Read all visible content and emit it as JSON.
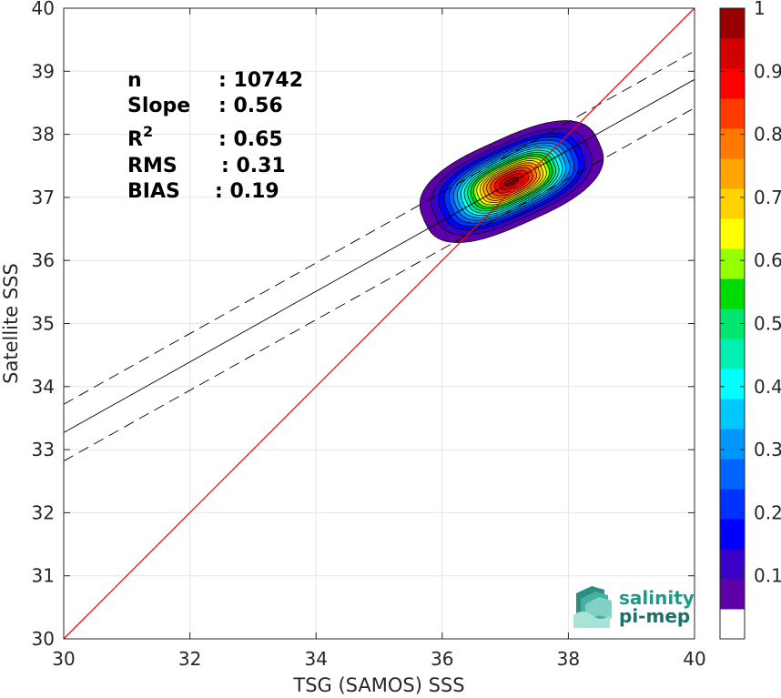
{
  "chart_data": {
    "type": "heatmap",
    "title": "",
    "xlabel": "TSG (SAMOS) SSS",
    "ylabel": "Satellite SSS",
    "xlim": [
      30,
      40
    ],
    "ylim": [
      30,
      40
    ],
    "xticks": [
      "30",
      "32",
      "34",
      "36",
      "38",
      "40"
    ],
    "yticks": [
      "30",
      "31",
      "32",
      "33",
      "34",
      "35",
      "36",
      "37",
      "38",
      "39",
      "40"
    ],
    "grid": true,
    "stats": [
      {
        "label": "n",
        "sep": ":",
        "value": "10742"
      },
      {
        "label": "Slope",
        "sep": ":",
        "value": "0.56"
      },
      {
        "label": "R",
        "sup": "2",
        "sep": ":",
        "value": "0.65"
      },
      {
        "label": "RMS",
        "sep": ":",
        "value": "0.31"
      },
      {
        "label": "BIAS",
        "sep": ":",
        "value": "0.19"
      }
    ],
    "identity_line": {
      "from": [
        30,
        30
      ],
      "to": [
        40,
        40
      ],
      "color": "#ff0000"
    },
    "regression_line": {
      "slope": 0.56,
      "intercept": 16.47,
      "color": "#000000"
    },
    "regression_bounds_offset": 0.45,
    "density_peak": {
      "x": 37.1,
      "y": 37.25
    },
    "density_levels": [
      0.05,
      0.1,
      0.15,
      0.2,
      0.25,
      0.3,
      0.35,
      0.4,
      0.45,
      0.5,
      0.55,
      0.6,
      0.65,
      0.7,
      0.75,
      0.8,
      0.85,
      0.9,
      0.95,
      1.0
    ],
    "colorbar": {
      "min": 0,
      "max": 1,
      "ticks": [
        "0.1",
        "0.2",
        "0.3",
        "0.4",
        "0.5",
        "0.6",
        "0.7",
        "0.8",
        "0.9",
        "1"
      ],
      "colors": [
        "#ffffff",
        "#5e00a8",
        "#3a00c8",
        "#0000ff",
        "#0032ff",
        "#0064ff",
        "#0096ff",
        "#00c8ff",
        "#00ffff",
        "#00f0b4",
        "#00e66e",
        "#00dc00",
        "#96ff00",
        "#ffff00",
        "#ffd200",
        "#ffa500",
        "#ff7800",
        "#ff3c00",
        "#ff0000",
        "#d20000",
        "#960000"
      ]
    }
  },
  "logo": {
    "line1": "salinity",
    "line2": "pi-mep",
    "color": "#1a9c8c",
    "color2": "#1d6f6a"
  }
}
